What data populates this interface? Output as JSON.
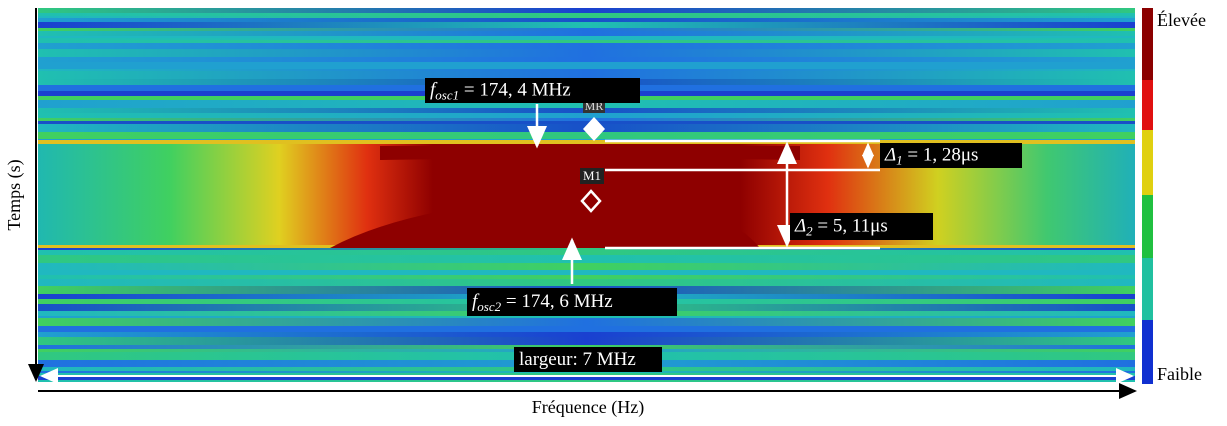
{
  "colorbar": {
    "high": "Élevée",
    "low": "Faible"
  },
  "axes": {
    "y_label": "Temps (s)",
    "x_label": "Fréquence (Hz)"
  },
  "markers": {
    "mr": "MR",
    "m1": "M1"
  },
  "annotations": {
    "f_osc1": {
      "symbol": "f",
      "subscript": "osc1",
      "rest": " = 174, 4 MHz"
    },
    "f_osc2": {
      "symbol": "f",
      "subscript": "osc2",
      "rest": " = 174, 6 MHz"
    },
    "delta1": {
      "symbol": "Δ",
      "subscript": "1",
      "rest": " = 1, 28μs"
    },
    "delta2": {
      "symbol": "Δ",
      "subscript": "2",
      "rest": " = 5, 11μs"
    },
    "width": "largeur: 7 MHz"
  }
}
